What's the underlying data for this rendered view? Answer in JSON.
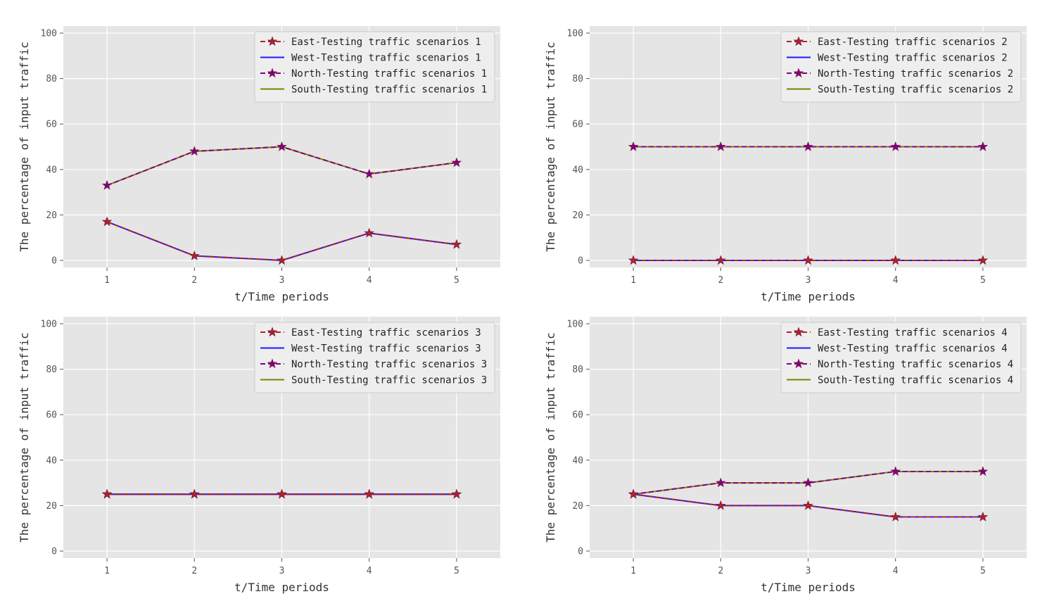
{
  "colors": {
    "background": "#e5e5e5",
    "grid": "#ffffff",
    "legend_bg": "#eeeeee",
    "east": "#b22222",
    "west": "#1a1aff",
    "north": "#800080",
    "south": "#808000",
    "marker_edge": "#7a1a4a"
  },
  "chart_data": [
    {
      "type": "line",
      "title": "",
      "xlabel": "t/Time periods",
      "ylabel": "The percentage of input traffic",
      "x": [
        1,
        2,
        3,
        4,
        5
      ],
      "xticks": [
        "1",
        "2",
        "3",
        "4",
        "5"
      ],
      "yticks": [
        "0",
        "20",
        "40",
        "60",
        "80",
        "100"
      ],
      "ylim": [
        0,
        100
      ],
      "grid": true,
      "legend_position": "top-right",
      "series": [
        {
          "name": "East-Testing traffic scenarios 1",
          "style": "dashed-star",
          "color_key": "east",
          "values": [
            17,
            2,
            0,
            12,
            7
          ]
        },
        {
          "name": "West-Testing traffic scenarios 1",
          "style": "solid",
          "color_key": "west",
          "values": [
            17,
            2,
            0,
            12,
            7
          ]
        },
        {
          "name": "North-Testing traffic scenarios 1",
          "style": "dashed-star",
          "color_key": "north",
          "values": [
            33,
            48,
            50,
            38,
            43
          ]
        },
        {
          "name": "South-Testing traffic scenarios 1",
          "style": "solid",
          "color_key": "south",
          "values": [
            33,
            48,
            50,
            38,
            43
          ]
        }
      ]
    },
    {
      "type": "line",
      "title": "",
      "xlabel": "t/Time periods",
      "ylabel": "The percentage of input traffic",
      "x": [
        1,
        2,
        3,
        4,
        5
      ],
      "xticks": [
        "1",
        "2",
        "3",
        "4",
        "5"
      ],
      "yticks": [
        "0",
        "20",
        "40",
        "60",
        "80",
        "100"
      ],
      "ylim": [
        0,
        100
      ],
      "grid": true,
      "legend_position": "top-right",
      "series": [
        {
          "name": "East-Testing traffic scenarios 2",
          "style": "dashed-star",
          "color_key": "east",
          "values": [
            0,
            0,
            0,
            0,
            0
          ]
        },
        {
          "name": "West-Testing traffic scenarios 2",
          "style": "solid",
          "color_key": "west",
          "values": [
            0,
            0,
            0,
            0,
            0
          ]
        },
        {
          "name": "North-Testing traffic scenarios 2",
          "style": "dashed-star",
          "color_key": "north",
          "values": [
            50,
            50,
            50,
            50,
            50
          ]
        },
        {
          "name": "South-Testing traffic scenarios 2",
          "style": "solid",
          "color_key": "south",
          "values": [
            50,
            50,
            50,
            50,
            50
          ]
        }
      ]
    },
    {
      "type": "line",
      "title": "",
      "xlabel": "t/Time periods",
      "ylabel": "The percentage of input traffic",
      "x": [
        1,
        2,
        3,
        4,
        5
      ],
      "xticks": [
        "1",
        "2",
        "3",
        "4",
        "5"
      ],
      "yticks": [
        "0",
        "20",
        "40",
        "60",
        "80",
        "100"
      ],
      "ylim": [
        0,
        100
      ],
      "grid": true,
      "legend_position": "top-right",
      "series": [
        {
          "name": "East-Testing traffic scenarios 3",
          "style": "dashed-star",
          "color_key": "east",
          "values": [
            25,
            25,
            25,
            25,
            25
          ]
        },
        {
          "name": "West-Testing traffic scenarios 3",
          "style": "solid",
          "color_key": "west",
          "values": [
            25,
            25,
            25,
            25,
            25
          ]
        },
        {
          "name": "North-Testing traffic scenarios 3",
          "style": "dashed-star",
          "color_key": "north",
          "values": [
            25,
            25,
            25,
            25,
            25
          ]
        },
        {
          "name": "South-Testing traffic scenarios 3",
          "style": "solid",
          "color_key": "south",
          "values": [
            25,
            25,
            25,
            25,
            25
          ]
        }
      ]
    },
    {
      "type": "line",
      "title": "",
      "xlabel": "t/Time periods",
      "ylabel": "The percentage of input traffic",
      "x": [
        1,
        2,
        3,
        4,
        5
      ],
      "xticks": [
        "1",
        "2",
        "3",
        "4",
        "5"
      ],
      "yticks": [
        "0",
        "20",
        "40",
        "60",
        "80",
        "100"
      ],
      "ylim": [
        0,
        100
      ],
      "grid": true,
      "legend_position": "top-right",
      "series": [
        {
          "name": "East-Testing traffic scenarios 4",
          "style": "dashed-star",
          "color_key": "east",
          "values": [
            25,
            20,
            20,
            15,
            15
          ]
        },
        {
          "name": "West-Testing traffic scenarios 4",
          "style": "solid",
          "color_key": "west",
          "values": [
            25,
            20,
            20,
            15,
            15
          ]
        },
        {
          "name": "North-Testing traffic scenarios 4",
          "style": "dashed-star",
          "color_key": "north",
          "values": [
            25,
            30,
            30,
            35,
            35
          ]
        },
        {
          "name": "South-Testing traffic scenarios 4",
          "style": "solid",
          "color_key": "south",
          "values": [
            25,
            30,
            30,
            35,
            35
          ]
        }
      ]
    }
  ]
}
